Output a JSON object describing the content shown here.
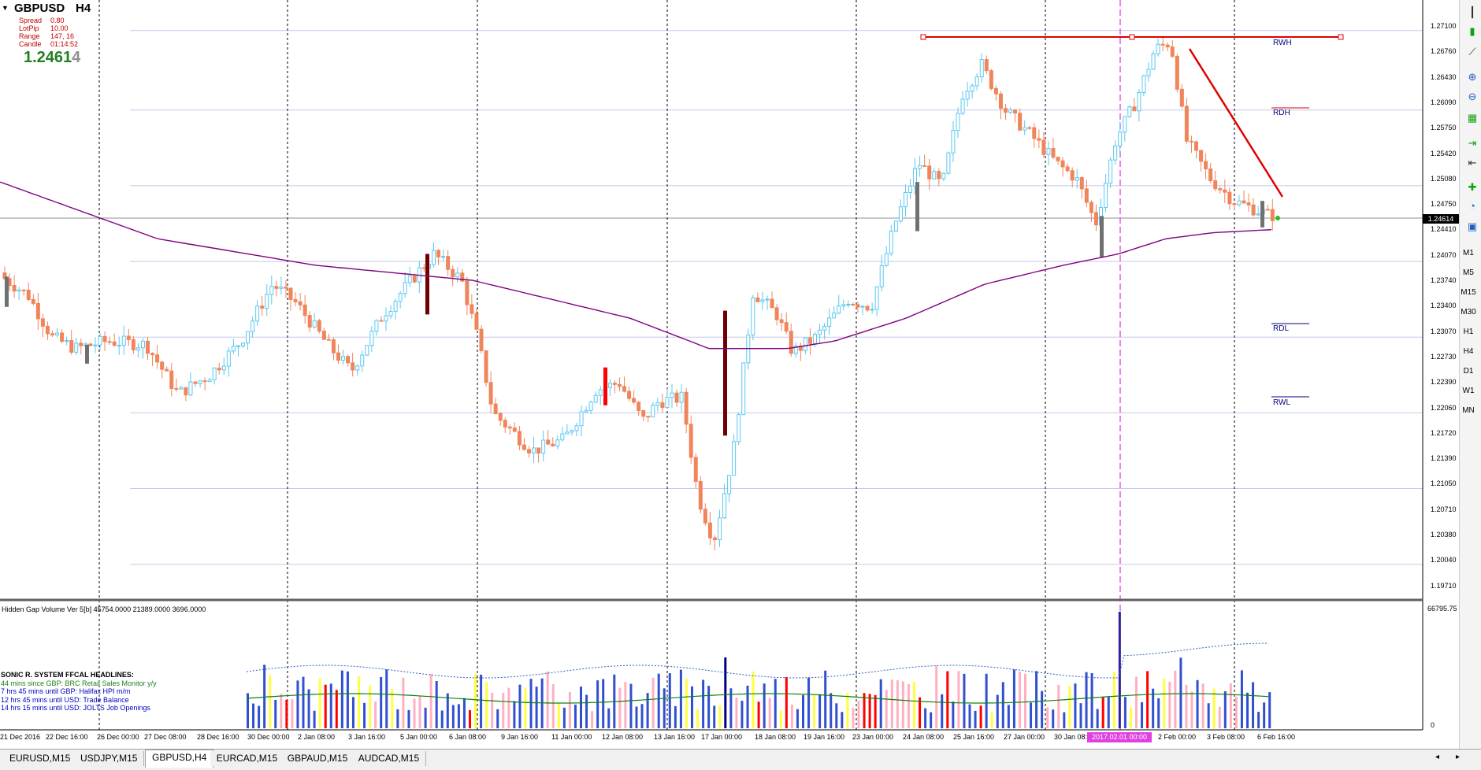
{
  "header": {
    "menu_arrow": "▼",
    "symbol": "GBPUSD",
    "timeframe": "H4",
    "spread_label": "Spread",
    "spread_value": "0.80",
    "lotpip_label": "LotPip",
    "lotpip_value": "10.00",
    "range_label": "Range",
    "range_value": "147, 16",
    "candle_label": "Candle",
    "candle_value": "01:14:52",
    "price_main": "1.2461",
    "price_last": "4"
  },
  "price_axis": {
    "labels": [
      "1.27100",
      "1.26760",
      "1.26430",
      "1.26090",
      "1.25750",
      "1.25420",
      "1.25080",
      "1.24750",
      "1.24410",
      "1.24070",
      "1.23740",
      "1.23400",
      "1.23070",
      "1.22730",
      "1.22390",
      "1.22060",
      "1.21720",
      "1.21390",
      "1.21050",
      "1.20710",
      "1.20380",
      "1.20040",
      "1.19710"
    ],
    "current": "1.24614"
  },
  "levels": {
    "rwh": "RWH",
    "rdh": "RDH",
    "rdl": "RDL",
    "rwl": "RWL"
  },
  "volume": {
    "title": "Hidden Gap Volume Ver 5[b] 45754.0000 21389.0000 3696.0000",
    "axis_max": "66795.75",
    "axis_min": "0"
  },
  "headlines": {
    "title": "SONIC R. SYSTEM  FFCAL HEADLINES:",
    "items": [
      "44 mins since GBP: BRC Retail Sales Monitor y/y",
      "7 hrs 45 mins until GBP: Halifax HPI m/m",
      "12 hrs 45 mins until USD: Trade Balance",
      "14 hrs 15 mins until USD: JOLTS Job Openings"
    ]
  },
  "time_axis": {
    "labels": [
      "21 Dec 2016",
      "22 Dec 16:00",
      "26 Dec 00:00",
      "27 Dec 08:00",
      "28 Dec 16:00",
      "30 Dec 00:00",
      "2 Jan 08:00",
      "3 Jan 16:00",
      "5 Jan 00:00",
      "6 Jan 08:00",
      "9 Jan 16:00",
      "11 Jan 00:00",
      "12 Jan 08:00",
      "13 Jan 16:00",
      "17 Jan 00:00",
      "18 Jan 08:00",
      "19 Jan 16:00",
      "23 Jan 00:00",
      "24 Jan 08:00",
      "25 Jan 16:00",
      "27 Jan 00:00",
      "30 Jan 08:00",
      "2 Feb 00:00",
      "3 Feb 08:00",
      "6 Feb 16:00"
    ],
    "highlight": "2017.02.01 00:00"
  },
  "tabs": [
    "EURUSD,M15",
    "USDJPY,M15",
    "GBPUSD,H4",
    "EURCAD,M15",
    "GBPAUD,M15",
    "AUDCAD,M15"
  ],
  "active_tab": "GBPUSD,H4",
  "timeframes": [
    "M1",
    "M5",
    "M15",
    "M30",
    "H1",
    "H4",
    "D1",
    "W1",
    "MN"
  ],
  "toolbar_icons": [
    "bar-chart-icon",
    "candlestick-icon",
    "line-chart-icon",
    "zoom-in-icon",
    "zoom-out-icon",
    "tile-windows-icon",
    "chart-shift-icon",
    "auto-scroll-icon",
    "indicators-icon",
    "templates-icon",
    "periods-icon"
  ],
  "colors": {
    "bull": "#5bc8f0",
    "bear": "#f0845a",
    "ma": "#800080",
    "level_red": "#e00000",
    "level_blue": "#000080",
    "grid": "#c8c8e8",
    "highlight": "#e040e0"
  }
}
